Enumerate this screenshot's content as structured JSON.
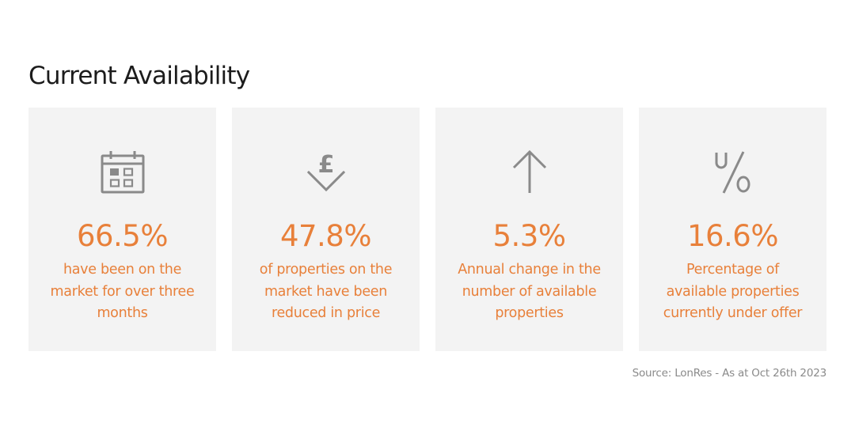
{
  "title": "Current Availability",
  "accent_color": "#e8803a",
  "card_background": "#f3f3f3",
  "icon_color": "#8a8a8a",
  "cards": [
    {
      "icon": "calendar-icon",
      "value": "66.5%",
      "lines": [
        "have been on the",
        "market for over three",
        "months"
      ]
    },
    {
      "icon": "pound-down-arrow-icon",
      "value": "47.8%",
      "lines": [
        "of properties on the",
        "market have been",
        "reduced in price"
      ]
    },
    {
      "icon": "up-arrow-icon",
      "value": "5.3%",
      "lines": [
        "Annual change in the",
        "number of available",
        "properties"
      ]
    },
    {
      "icon": "under-offer-percent-icon",
      "value": "16.6%",
      "lines": [
        "Percentage of",
        "available properties",
        "currently under offer"
      ]
    }
  ],
  "source": "Source: LonRes - As at Oct 26th 2023"
}
